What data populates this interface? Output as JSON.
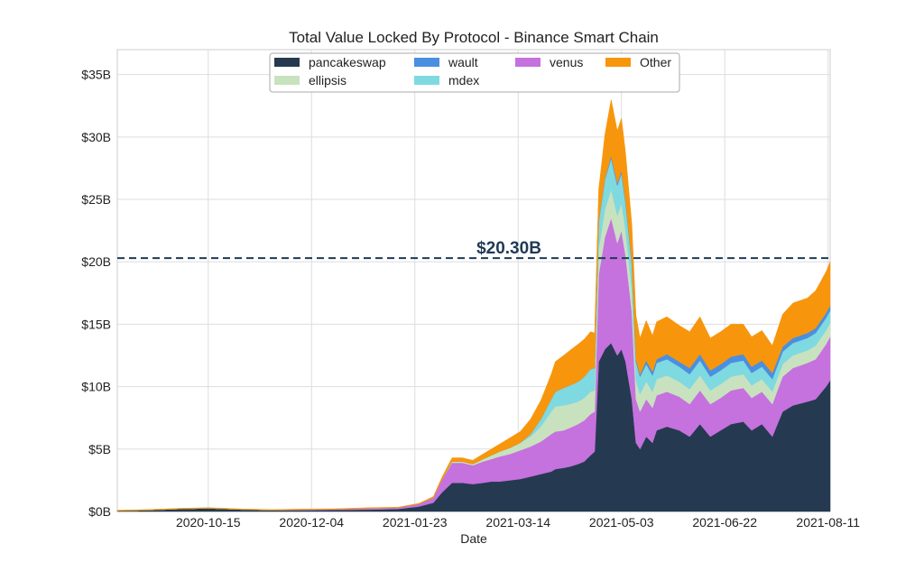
{
  "chart_data": {
    "type": "area",
    "stacked": true,
    "title": "Total Value Locked By Protocol - Binance Smart Chain",
    "xlabel": "Date",
    "ylabel": "",
    "x_range": [
      "2020-09-01",
      "2021-08-12"
    ],
    "ylim": [
      0,
      37
    ],
    "yticks": [
      0,
      5,
      10,
      15,
      20,
      25,
      30,
      35
    ],
    "ytick_labels": [
      "$0B",
      "$5B",
      "$10B",
      "$15B",
      "$20B",
      "$25B",
      "$30B",
      "$35B"
    ],
    "xticks": [
      "2020-10-15",
      "2020-12-04",
      "2021-01-23",
      "2021-03-14",
      "2021-05-03",
      "2021-06-22",
      "2021-08-11"
    ],
    "grid": true,
    "legend_position": "top-center",
    "reference_line": {
      "value": 20.3,
      "label": "$20.30B",
      "color": "#1f3a56",
      "style": "dashed"
    },
    "dates": [
      "2020-09-01",
      "2020-09-15",
      "2020-10-01",
      "2020-10-15",
      "2020-11-01",
      "2020-11-15",
      "2020-12-01",
      "2020-12-15",
      "2021-01-01",
      "2021-01-15",
      "2021-01-25",
      "2021-02-01",
      "2021-02-05",
      "2021-02-10",
      "2021-02-15",
      "2021-02-20",
      "2021-02-25",
      "2021-03-01",
      "2021-03-05",
      "2021-03-10",
      "2021-03-15",
      "2021-03-20",
      "2021-03-25",
      "2021-03-30",
      "2021-04-01",
      "2021-04-05",
      "2021-04-08",
      "2021-04-12",
      "2021-04-15",
      "2021-04-18",
      "2021-04-20",
      "2021-04-22",
      "2021-04-25",
      "2021-04-28",
      "2021-05-01",
      "2021-05-03",
      "2021-05-05",
      "2021-05-08",
      "2021-05-10",
      "2021-05-12",
      "2021-05-15",
      "2021-05-18",
      "2021-05-20",
      "2021-05-25",
      "2021-05-31",
      "2021-06-05",
      "2021-06-10",
      "2021-06-15",
      "2021-06-20",
      "2021-06-25",
      "2021-07-01",
      "2021-07-05",
      "2021-07-10",
      "2021-07-15",
      "2021-07-20",
      "2021-07-25",
      "2021-08-01",
      "2021-08-05",
      "2021-08-10",
      "2021-08-12"
    ],
    "series": [
      {
        "name": "pancakeswap",
        "color": "#253a50",
        "values": [
          0.05,
          0.1,
          0.2,
          0.25,
          0.15,
          0.1,
          0.1,
          0.12,
          0.15,
          0.2,
          0.4,
          0.7,
          1.5,
          2.3,
          2.3,
          2.2,
          2.3,
          2.4,
          2.4,
          2.5,
          2.6,
          2.8,
          3.0,
          3.2,
          3.4,
          3.5,
          3.6,
          3.8,
          4.0,
          4.5,
          4.8,
          12.0,
          13.0,
          13.5,
          12.5,
          13.0,
          12.0,
          9.0,
          5.5,
          5.0,
          6.0,
          5.5,
          6.5,
          6.8,
          6.5,
          6.0,
          7.0,
          6.0,
          6.5,
          7.0,
          7.2,
          6.5,
          7.0,
          6.0,
          8.0,
          8.5,
          8.8,
          9.0,
          10.0,
          10.5
        ]
      },
      {
        "name": "venus",
        "color": "#c571de",
        "values": [
          0.0,
          0.0,
          0.0,
          0.0,
          0.0,
          0.0,
          0.05,
          0.05,
          0.1,
          0.1,
          0.2,
          0.4,
          1.0,
          1.6,
          1.6,
          1.5,
          1.7,
          1.8,
          2.0,
          2.1,
          2.3,
          2.4,
          2.6,
          3.0,
          3.0,
          3.0,
          3.1,
          3.2,
          3.3,
          3.3,
          3.2,
          7.0,
          9.0,
          10.0,
          9.0,
          9.5,
          8.5,
          7.0,
          3.5,
          3.0,
          3.0,
          2.8,
          2.8,
          2.8,
          2.7,
          2.6,
          2.7,
          2.6,
          2.6,
          2.7,
          2.7,
          2.6,
          2.6,
          2.6,
          2.8,
          3.0,
          3.1,
          3.2,
          3.4,
          3.5
        ]
      },
      {
        "name": "ellipsis",
        "color": "#c8e2bf",
        "values": [
          0.0,
          0.0,
          0.0,
          0.0,
          0.0,
          0.0,
          0.0,
          0.0,
          0.0,
          0.0,
          0.0,
          0.0,
          0.0,
          0.1,
          0.1,
          0.1,
          0.2,
          0.3,
          0.4,
          0.5,
          0.6,
          0.8,
          1.2,
          1.8,
          2.0,
          2.0,
          1.9,
          1.8,
          1.8,
          1.8,
          1.7,
          2.0,
          2.2,
          2.3,
          2.2,
          2.2,
          2.0,
          1.8,
          1.5,
          1.4,
          1.4,
          1.3,
          1.3,
          1.3,
          1.2,
          1.2,
          1.2,
          1.1,
          1.1,
          1.1,
          1.1,
          1.0,
          1.0,
          1.0,
          1.0,
          1.0,
          1.0,
          1.1,
          1.1,
          1.1
        ]
      },
      {
        "name": "mdex",
        "color": "#7fd9e0",
        "values": [
          0.0,
          0.0,
          0.0,
          0.0,
          0.0,
          0.0,
          0.0,
          0.0,
          0.0,
          0.0,
          0.0,
          0.0,
          0.0,
          0.0,
          0.0,
          0.0,
          0.0,
          0.0,
          0.0,
          0.0,
          0.0,
          0.2,
          0.6,
          1.0,
          1.2,
          1.4,
          1.5,
          1.6,
          1.7,
          1.8,
          1.8,
          2.2,
          2.4,
          2.5,
          2.4,
          2.4,
          2.2,
          2.0,
          1.5,
          1.4,
          1.4,
          1.3,
          1.3,
          1.3,
          1.2,
          1.2,
          1.2,
          1.1,
          1.1,
          1.1,
          1.1,
          1.0,
          1.0,
          1.0,
          1.0,
          1.0,
          1.0,
          1.0,
          1.0,
          1.0
        ]
      },
      {
        "name": "wault",
        "color": "#4a8fe0",
        "values": [
          0.0,
          0.0,
          0.0,
          0.0,
          0.0,
          0.0,
          0.0,
          0.0,
          0.0,
          0.0,
          0.0,
          0.0,
          0.0,
          0.0,
          0.0,
          0.0,
          0.0,
          0.0,
          0.0,
          0.0,
          0.0,
          0.0,
          0.0,
          0.0,
          0.0,
          0.0,
          0.0,
          0.0,
          0.0,
          0.0,
          0.0,
          0.1,
          0.1,
          0.2,
          0.2,
          0.2,
          0.2,
          0.2,
          0.2,
          0.2,
          0.3,
          0.3,
          0.3,
          0.4,
          0.4,
          0.5,
          0.5,
          0.5,
          0.5,
          0.5,
          0.5,
          0.5,
          0.5,
          0.5,
          0.4,
          0.4,
          0.4,
          0.4,
          0.4,
          0.4
        ]
      },
      {
        "name": "Other",
        "color": "#f7960d",
        "values": [
          0.05,
          0.05,
          0.05,
          0.05,
          0.05,
          0.05,
          0.05,
          0.05,
          0.05,
          0.05,
          0.05,
          0.1,
          0.2,
          0.3,
          0.3,
          0.3,
          0.4,
          0.5,
          0.6,
          0.8,
          0.9,
          1.2,
          1.5,
          2.0,
          2.4,
          2.6,
          2.8,
          3.0,
          3.0,
          3.0,
          2.8,
          2.5,
          3.5,
          4.5,
          4.2,
          4.2,
          3.8,
          3.0,
          3.5,
          2.9,
          3.2,
          2.9,
          3.0,
          3.0,
          2.9,
          2.9,
          3.0,
          2.6,
          2.6,
          2.6,
          2.4,
          2.4,
          2.4,
          2.2,
          2.6,
          2.8,
          2.8,
          3.0,
          3.3,
          3.5
        ]
      }
    ]
  }
}
